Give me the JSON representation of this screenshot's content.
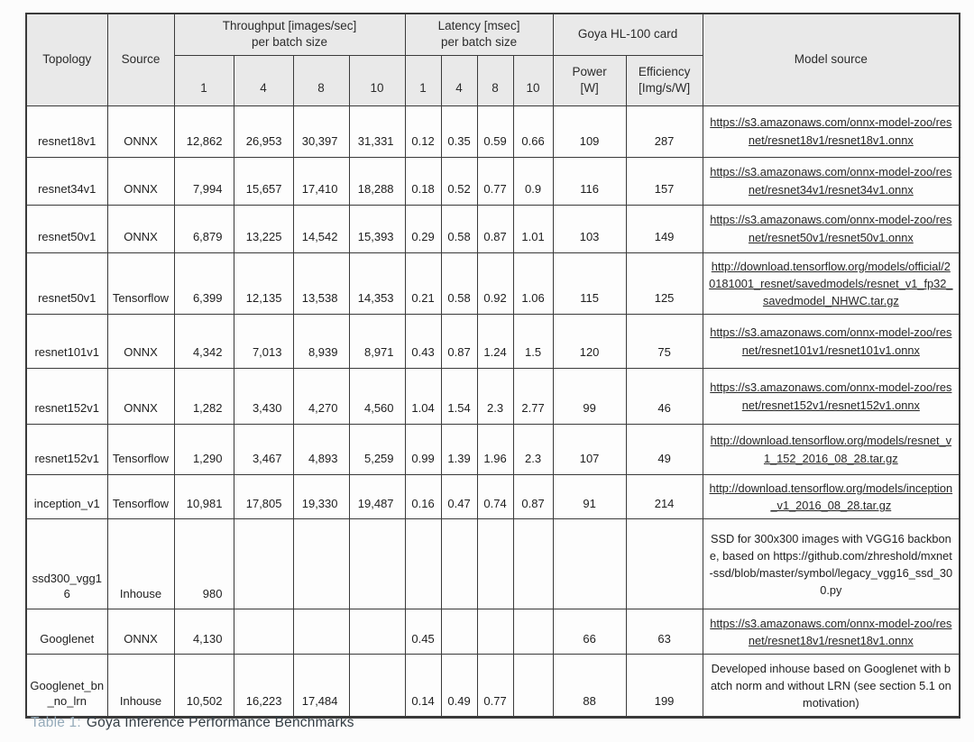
{
  "table": {
    "caption_prefix": "Table 1:",
    "caption_text": "Goya Inference Performance Benchmarks",
    "colors": {
      "caption_accent": "#95abba",
      "caption_text": "#333d44",
      "header_bg": "#e9e9e9",
      "border": "#3a3a3a"
    },
    "headers": {
      "topology": "Topology",
      "source": "Source",
      "throughput_group": "Throughput [images/sec]\nper batch size",
      "latency_group": "Latency [msec]\nper batch size",
      "goya_group": "Goya HL-100 card",
      "batch_sizes": [
        "1",
        "4",
        "8",
        "10"
      ],
      "power": "Power\n[W]",
      "efficiency": "Efficiency\n[Img/s/W]",
      "model_source": "Model source"
    },
    "rows": [
      {
        "topology": "resnet18v1",
        "source": "ONNX",
        "throughput": [
          "12,862",
          "26,953",
          "30,397",
          "31,331"
        ],
        "latency": [
          "0.12",
          "0.35",
          "0.59",
          "0.66"
        ],
        "power": "109",
        "efficiency": "287",
        "model_source": "https://s3.amazonaws.com/onnx-model-zoo/resnet/resnet18v1/resnet18v1.onnx",
        "is_link": true
      },
      {
        "topology": "resnet34v1",
        "source": "ONNX",
        "throughput": [
          "7,994",
          "15,657",
          "17,410",
          "18,288"
        ],
        "latency": [
          "0.18",
          "0.52",
          "0.77",
          "0.9"
        ],
        "power": "116",
        "efficiency": "157",
        "model_source": "https://s3.amazonaws.com/onnx-model-zoo/resnet/resnet34v1/resnet34v1.onnx",
        "is_link": true
      },
      {
        "topology": "resnet50v1",
        "source": "ONNX",
        "throughput": [
          "6,879",
          "13,225",
          "14,542",
          "15,393"
        ],
        "latency": [
          "0.29",
          "0.58",
          "0.87",
          "1.01"
        ],
        "power": "103",
        "efficiency": "149",
        "model_source": "https://s3.amazonaws.com/onnx-model-zoo/resnet/resnet50v1/resnet50v1.onnx",
        "is_link": true
      },
      {
        "topology": "resnet50v1",
        "source": "Tensorflow",
        "throughput": [
          "6,399",
          "12,135",
          "13,538",
          "14,353"
        ],
        "latency": [
          "0.21",
          "0.58",
          "0.92",
          "1.06"
        ],
        "power": "115",
        "efficiency": "125",
        "model_source": "http://download.tensorflow.org/models/official/20181001_resnet/savedmodels/resnet_v1_fp32_savedmodel_NHWC.tar.gz",
        "is_link": true
      },
      {
        "topology": "resnet101v1",
        "source": "ONNX",
        "throughput": [
          "4,342",
          "7,013",
          "8,939",
          "8,971"
        ],
        "latency": [
          "0.43",
          "0.87",
          "1.24",
          "1.5"
        ],
        "power": "120",
        "efficiency": "75",
        "model_source": "https://s3.amazonaws.com/onnx-model-zoo/resnet/resnet101v1/resnet101v1.onnx",
        "is_link": true
      },
      {
        "topology": "resnet152v1",
        "source": "ONNX",
        "throughput": [
          "1,282",
          "3,430",
          "4,270",
          "4,560"
        ],
        "latency": [
          "1.04",
          "1.54",
          "2.3",
          "2.77"
        ],
        "power": "99",
        "efficiency": "46",
        "model_source": "https://s3.amazonaws.com/onnx-model-zoo/resnet/resnet152v1/resnet152v1.onnx",
        "is_link": true
      },
      {
        "topology": "resnet152v1",
        "source": "Tensorflow",
        "throughput": [
          "1,290",
          "3,467",
          "4,893",
          "5,259"
        ],
        "latency": [
          "0.99",
          "1.39",
          "1.96",
          "2.3"
        ],
        "power": "107",
        "efficiency": "49",
        "model_source": "http://download.tensorflow.org/models/resnet_v1_152_2016_08_28.tar.gz",
        "is_link": true
      },
      {
        "topology": "inception_v1",
        "source": "Tensorflow",
        "throughput": [
          "10,981",
          "17,805",
          "19,330",
          "19,487"
        ],
        "latency": [
          "0.16",
          "0.47",
          "0.74",
          "0.87"
        ],
        "power": "91",
        "efficiency": "214",
        "model_source": "http://download.tensorflow.org/models/inception_v1_2016_08_28.tar.gz",
        "is_link": true
      },
      {
        "topology": "ssd300_vgg16",
        "source": "Inhouse",
        "throughput": [
          "980",
          "",
          "",
          ""
        ],
        "latency": [
          "",
          "",
          "",
          ""
        ],
        "power": "",
        "efficiency": "",
        "model_source": "SSD for 300x300 images with VGG16 backbone, based on https://github.com/zhreshold/mxnet-ssd/blob/master/symbol/legacy_vgg16_ssd_300.py",
        "is_link": false
      },
      {
        "topology": "Googlenet",
        "source": "ONNX",
        "throughput": [
          "4,130",
          "",
          "",
          ""
        ],
        "latency": [
          "0.45",
          "",
          "",
          ""
        ],
        "power": "66",
        "efficiency": "63",
        "model_source": "https://s3.amazonaws.com/onnx-model-zoo/resnet/resnet18v1/resnet18v1.onnx",
        "is_link": true
      },
      {
        "topology": "Googlenet_bn_no_lrn",
        "source": "Inhouse",
        "throughput": [
          "10,502",
          "16,223",
          "17,484",
          ""
        ],
        "latency": [
          "0.14",
          "0.49",
          "0.77",
          ""
        ],
        "power": "88",
        "efficiency": "199",
        "model_source": "Developed inhouse based on Googlenet with batch norm and without LRN (see section 5.1 on motivation)",
        "is_link": false
      }
    ]
  }
}
